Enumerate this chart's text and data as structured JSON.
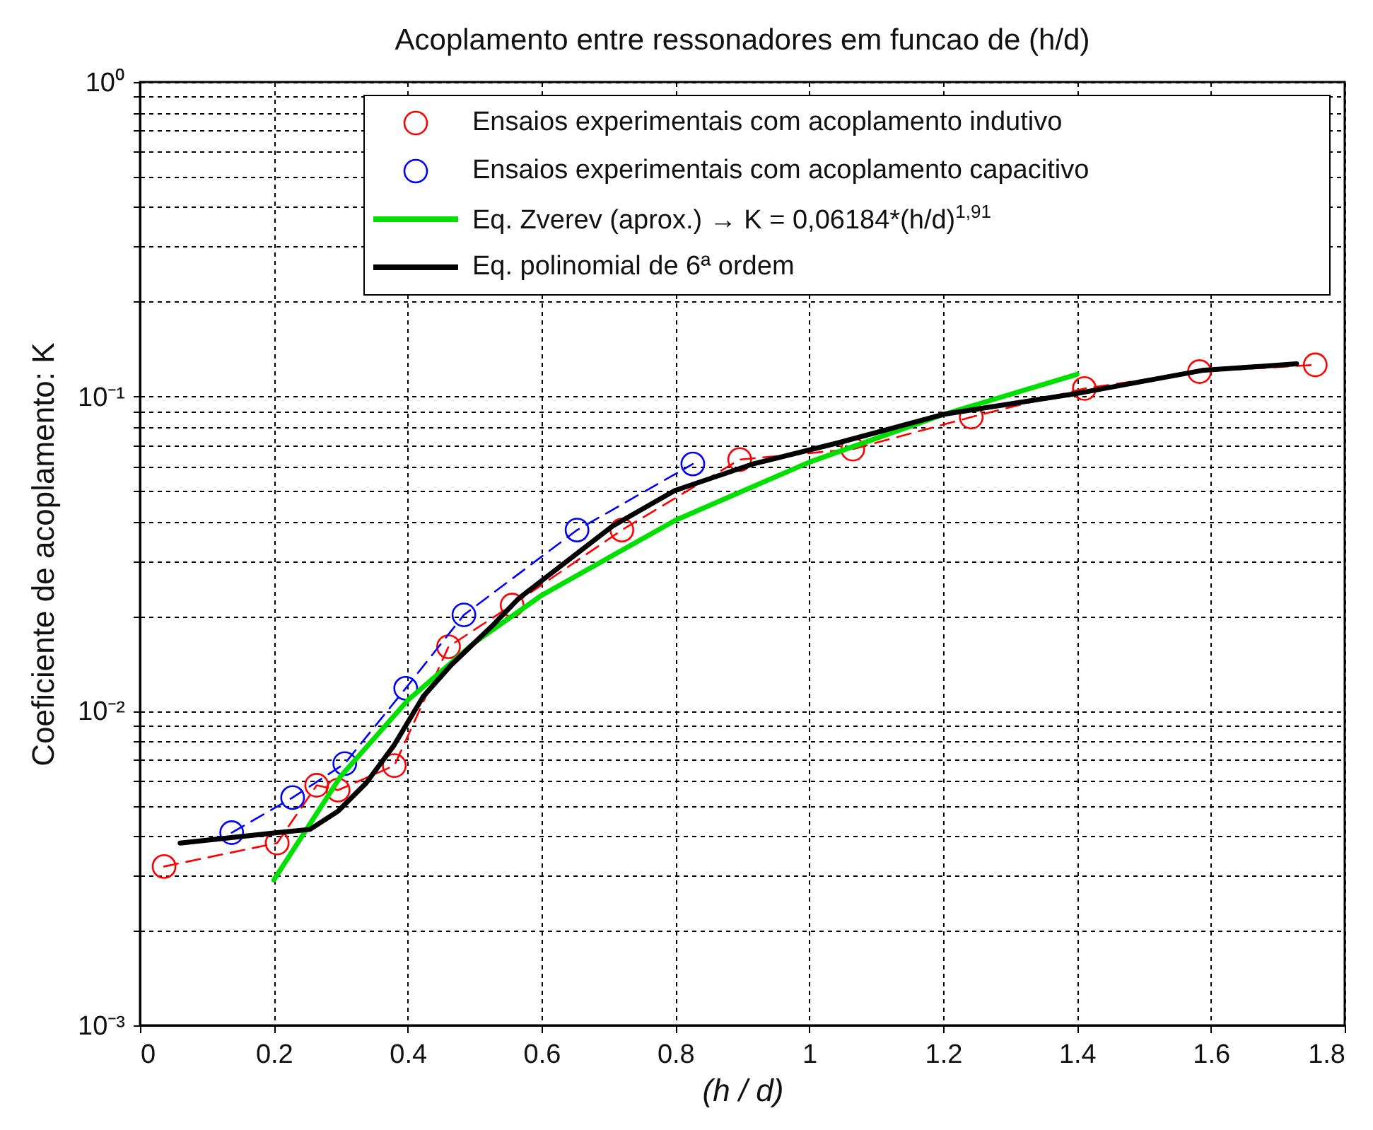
{
  "chart_data": {
    "type": "line",
    "title": "Acoplamento entre ressonadores em funcao de (h/d)",
    "xlabel": "(h / d)",
    "ylabel": "Coeficiente de acoplamento:  K",
    "log": "y",
    "grid": true,
    "legend": "top right",
    "xlim": [
      0,
      1.8
    ],
    "xticks": [
      0,
      0.2,
      0.4,
      0.6,
      0.8,
      1,
      1.2,
      1.4,
      1.6,
      1.8
    ],
    "ylim": [
      0.001,
      1
    ],
    "yticks": [
      {
        "value": 0.001,
        "label": "10⁻³"
      },
      {
        "value": 0.01,
        "label": "10⁻²"
      },
      {
        "value": 0.1,
        "label": "10⁻¹"
      },
      {
        "value": 1,
        "label": "10⁰"
      }
    ],
    "series": [
      {
        "name": "Ensaios experimentais com acoplamento indutivo",
        "color": "#ff0000",
        "line_style": "dashed",
        "marker": "circle",
        "x": [
          0.036,
          0.205,
          0.264,
          0.296,
          0.38,
          0.461,
          0.556,
          0.72,
          0.896,
          1.065,
          1.242,
          1.411,
          1.583,
          1.756
        ],
        "values": [
          0.0032,
          0.0038,
          0.0058,
          0.0056,
          0.0067,
          0.016,
          0.0217,
          0.0376,
          0.063,
          0.068,
          0.086,
          0.106,
          0.12,
          0.126
        ]
      },
      {
        "name": "Ensaios experimentais com acoplamento capacitivo",
        "color": "#0000ff",
        "line_style": "dashed",
        "marker": "circle",
        "x": [
          0.137,
          0.228,
          0.306,
          0.397,
          0.484,
          0.653,
          0.826
        ],
        "values": [
          0.0041,
          0.0053,
          0.0068,
          0.0118,
          0.0202,
          0.0376,
          0.061
        ]
      },
      {
        "name": "Eq. Zverev (aprox.) → K = 0,06184*(h/d)$^{1,91}$",
        "color": "#00e000",
        "line_style": "solid",
        "marker": "none",
        "x": [
          0.2,
          0.3,
          0.4,
          0.5,
          0.6,
          0.8,
          1.0,
          1.2,
          1.4
        ],
        "values": [
          0.0029,
          0.0062,
          0.0108,
          0.0165,
          0.0233,
          0.0404,
          0.0618,
          0.0876,
          0.1176
        ]
      },
      {
        "name": "Eq. polinomial de 6ª ordem",
        "color": "#000000",
        "line_style": "solid",
        "marker": "none",
        "x": [
          0.06,
          0.205,
          0.254,
          0.296,
          0.338,
          0.38,
          0.423,
          0.465,
          0.528,
          0.566,
          0.706,
          0.799,
          0.917,
          1.044,
          1.2,
          1.403,
          1.587,
          1.728
        ],
        "values": [
          0.0038,
          0.0041,
          0.0042,
          0.0048,
          0.0059,
          0.0078,
          0.0111,
          0.014,
          0.0188,
          0.0228,
          0.0387,
          0.0502,
          0.0611,
          0.0713,
          0.0877,
          0.1025,
          0.121,
          0.127
        ]
      }
    ]
  }
}
